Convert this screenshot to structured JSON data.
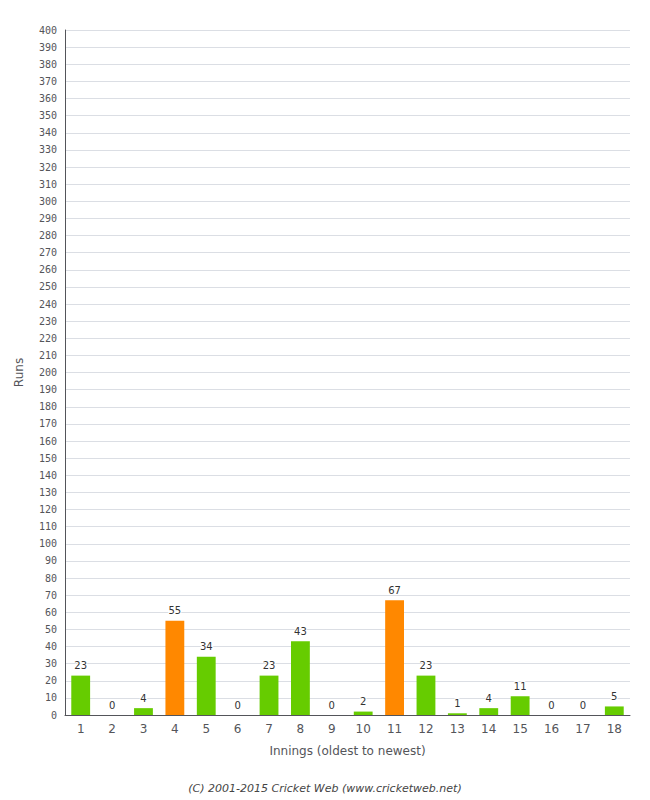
{
  "chart_data": {
    "type": "bar",
    "xlabel": "Innings (oldest to newest)",
    "ylabel": "Runs",
    "categories": [
      1,
      2,
      3,
      4,
      5,
      6,
      7,
      8,
      9,
      10,
      11,
      12,
      13,
      14,
      15,
      16,
      17,
      18
    ],
    "values": [
      23,
      0,
      4,
      55,
      34,
      0,
      23,
      43,
      0,
      2,
      67,
      23,
      1,
      4,
      11,
      0,
      0,
      5
    ],
    "colors": [
      "#66cc00",
      "#66cc00",
      "#66cc00",
      "#ff8800",
      "#66cc00",
      "#66cc00",
      "#66cc00",
      "#66cc00",
      "#66cc00",
      "#66cc00",
      "#ff8800",
      "#66cc00",
      "#66cc00",
      "#66cc00",
      "#66cc00",
      "#66cc00",
      "#66cc00",
      "#66cc00"
    ],
    "ylim": [
      0,
      400
    ],
    "yticks": [
      0,
      10,
      20,
      30,
      40,
      50,
      60,
      70,
      80,
      90,
      100,
      110,
      120,
      130,
      140,
      150,
      160,
      170,
      180,
      190,
      200,
      210,
      220,
      230,
      240,
      250,
      260,
      270,
      280,
      290,
      300,
      310,
      320,
      330,
      340,
      350,
      360,
      370,
      380,
      390,
      400
    ],
    "grid": true,
    "data_labels": true,
    "annotations": [
      "(C) 2001-2015 Cricket Web (www.cricketweb.net)"
    ]
  }
}
